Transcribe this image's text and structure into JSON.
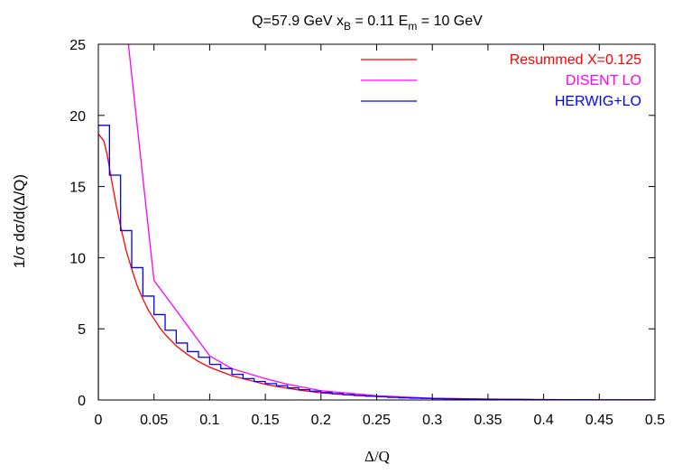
{
  "chart_data": {
    "type": "line",
    "title": {
      "main": "Q=57.9 GeV x",
      "sub1": "B",
      "mid": " = 0.11 E",
      "sub2": "m",
      "end": " = 10 GeV"
    },
    "xlabel": "Δ/Q",
    "ylabel": "1/σ dσ/d(Δ/Q)",
    "xlim": [
      0,
      0.5
    ],
    "ylim": [
      0,
      25
    ],
    "xticks": [
      0,
      0.05,
      0.1,
      0.15,
      0.2,
      0.25,
      0.3,
      0.35,
      0.4,
      0.45,
      0.5
    ],
    "xtick_labels": [
      "0",
      "0.05",
      "0.1",
      "0.15",
      "0.2",
      "0.25",
      "0.3",
      "0.35",
      "0.4",
      "0.45",
      "0.5"
    ],
    "yticks": [
      0,
      5,
      10,
      15,
      20,
      25
    ],
    "ytick_labels": [
      "0",
      "5",
      "10",
      "15",
      "20",
      "25"
    ],
    "grid": false,
    "legend_position": "top-right",
    "series": [
      {
        "name": "Resummed X=0.125",
        "style": "line",
        "color": "#ff0000",
        "x": [
          0,
          0.002,
          0.005,
          0.008,
          0.012,
          0.016,
          0.02,
          0.025,
          0.03,
          0.035,
          0.04,
          0.045,
          0.05,
          0.055,
          0.06,
          0.07,
          0.08,
          0.09,
          0.1,
          0.11,
          0.12,
          0.13,
          0.14,
          0.15,
          0.16,
          0.18,
          0.2,
          0.22,
          0.25,
          0.3,
          0.35,
          0.4,
          0.45,
          0.5
        ],
        "y": [
          18.7,
          18.5,
          18.2,
          17.2,
          15.4,
          13.7,
          12.2,
          10.5,
          9.2,
          8.0,
          7.1,
          6.3,
          5.7,
          5.1,
          4.6,
          3.8,
          3.2,
          2.7,
          2.3,
          2.0,
          1.7,
          1.5,
          1.3,
          1.1,
          0.95,
          0.7,
          0.5,
          0.38,
          0.25,
          0.12,
          0.06,
          0.03,
          0.015,
          0.01
        ]
      },
      {
        "name": "DISENT LO",
        "style": "line",
        "color": "#ff00ff",
        "x": [
          0.027,
          0.05,
          0.07,
          0.1,
          0.12,
          0.15,
          0.17,
          0.2,
          0.25,
          0.3,
          0.35,
          0.4,
          0.45,
          0.5
        ],
        "y": [
          25,
          8.4,
          6.3,
          3.1,
          2.2,
          1.5,
          1.1,
          0.65,
          0.3,
          0.12,
          0.05,
          0.02,
          0.01,
          0.005
        ],
        "start_x": 0.027
      },
      {
        "name": "HERWIG+LO",
        "style": "step",
        "color": "#0000ff",
        "bin_width": 0.01,
        "values": [
          19.3,
          15.8,
          11.9,
          9.3,
          7.3,
          6.0,
          4.9,
          4.0,
          3.4,
          3.0,
          2.5,
          2.2,
          1.8,
          1.5,
          1.3,
          1.15,
          1.0,
          0.85,
          0.72,
          0.62,
          0.52,
          0.44,
          0.37,
          0.31,
          0.26,
          0.22,
          0.18,
          0.15,
          0.13,
          0.11,
          0.09,
          0.08,
          0.07,
          0.06,
          0.05,
          0.045,
          0.04,
          0.035,
          0.03,
          0.025,
          0.02,
          0.018,
          0.016,
          0.014,
          0.012,
          0.01,
          0.009,
          0.008,
          0.007,
          0.006
        ]
      }
    ]
  }
}
